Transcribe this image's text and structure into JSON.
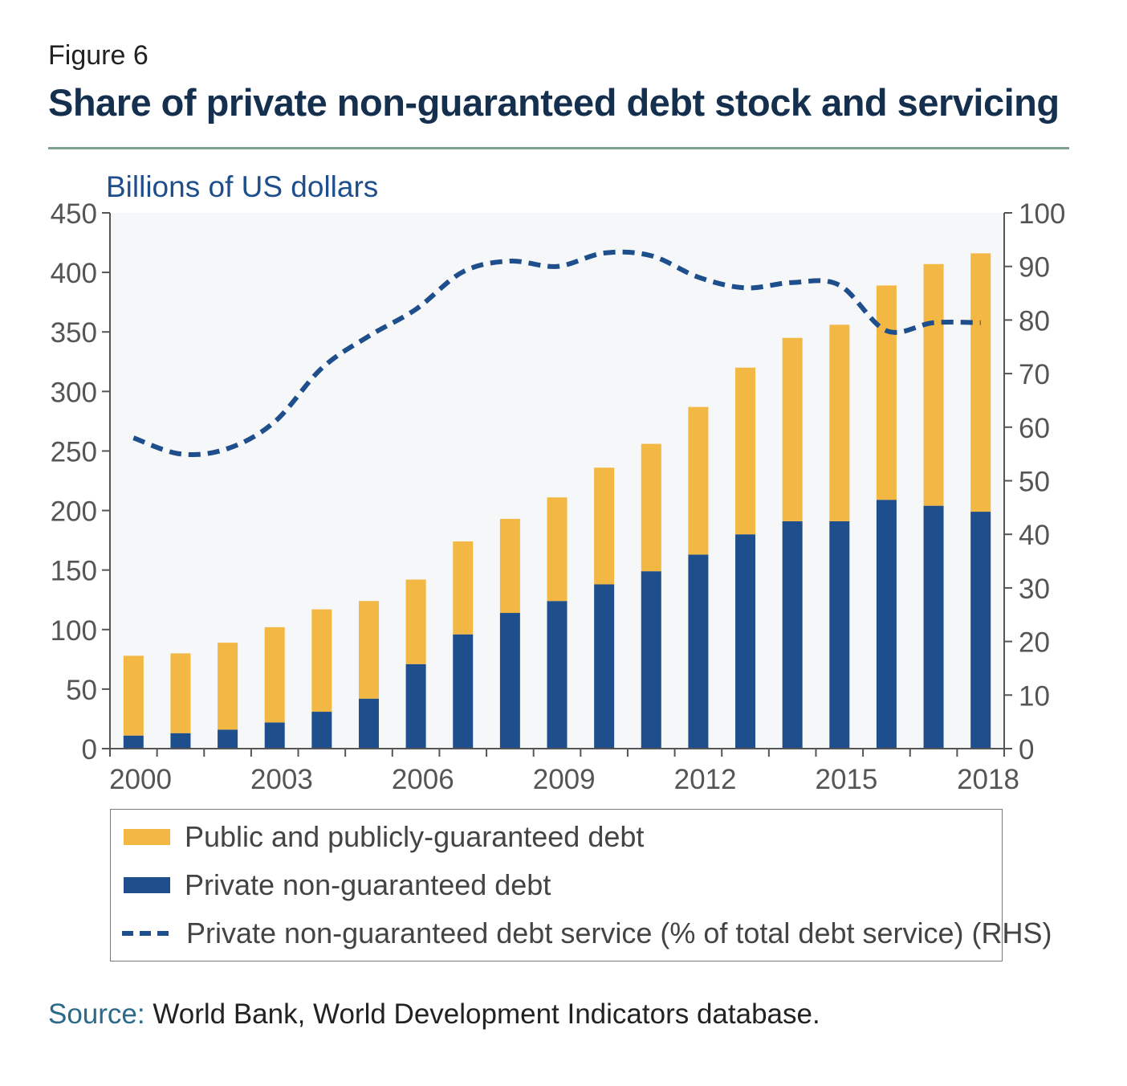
{
  "figure_label": "Figure 6",
  "title": "Share of private non-guaranteed debt stock and servicing",
  "source_label": "Source:",
  "source_text": " World Bank, World Development Indicators database.",
  "colors": {
    "public": "#f2b843",
    "private": "#1f4e8c",
    "line": "#1f4e8c",
    "plot_bg": "#f5f7f9",
    "title": "#15304f",
    "unit": "#1f4e8c"
  },
  "legend": [
    {
      "label": "Public and publicly-guaranteed debt",
      "swatch": "rect",
      "color": "#f2b843"
    },
    {
      "label": "Private non-guaranteed debt",
      "swatch": "rect",
      "color": "#1f4e8c"
    },
    {
      "label": "Private non-guaranteed debt service (% of total debt service) (RHS)",
      "swatch": "dash",
      "color": "#1f4e8c"
    }
  ],
  "chart_data": {
    "type": "bar",
    "stacked": true,
    "ylabel": "Billions of US dollars",
    "ylim": [
      0,
      450
    ],
    "yticks": [
      0,
      50,
      100,
      150,
      200,
      250,
      300,
      350,
      400,
      450
    ],
    "y2lim": [
      0,
      100
    ],
    "y2ticks": [
      0,
      10,
      20,
      30,
      40,
      50,
      60,
      70,
      80,
      90,
      100
    ],
    "xtick_labels": [
      "2000",
      "2003",
      "2006",
      "2009",
      "2012",
      "2015",
      "2018"
    ],
    "categories": [
      "2000",
      "2001",
      "2002",
      "2003",
      "2004",
      "2005",
      "2006",
      "2007",
      "2008",
      "2009",
      "2010",
      "2011",
      "2012",
      "2013",
      "2014",
      "2015",
      "2016",
      "2017",
      "2018"
    ],
    "series": [
      {
        "name": "Private non-guaranteed debt",
        "axis": "left",
        "kind": "bar",
        "values": [
          11,
          13,
          16,
          22,
          31,
          42,
          71,
          96,
          114,
          124,
          138,
          149,
          163,
          180,
          191,
          191,
          209,
          204,
          199
        ]
      },
      {
        "name": "Public and publicly-guaranteed debt",
        "axis": "left",
        "kind": "bar",
        "values": [
          67,
          67,
          73,
          80,
          86,
          82,
          71,
          78,
          79,
          87,
          98,
          107,
          124,
          140,
          154,
          165,
          180,
          203,
          217
        ]
      },
      {
        "name": "Private non-guaranteed debt service (% of total debt service) (RHS)",
        "axis": "right",
        "kind": "line",
        "dashed": true,
        "values": [
          58,
          55,
          56,
          61,
          71,
          77,
          82,
          89,
          91,
          90,
          92.5,
          92,
          88,
          86,
          87,
          86.5,
          78,
          79.5,
          79.5
        ]
      }
    ],
    "grid": false,
    "legend_position": "bottom"
  }
}
